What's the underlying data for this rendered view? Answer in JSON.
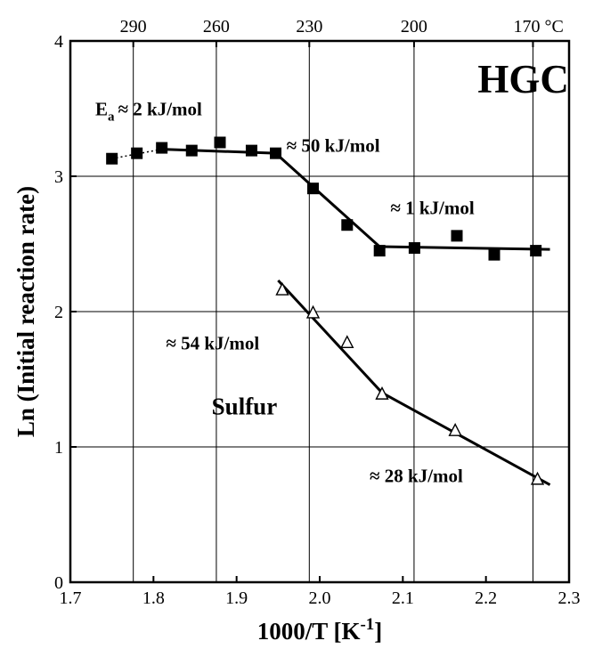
{
  "chart_data": {
    "type": "scatter",
    "title": "",
    "xlabel": "1000/T [K",
    "xlabel_sup": "-1",
    "xlabel_end": "]",
    "ylabel": "Ln (Initial reaction rate)",
    "xlim": [
      1.7,
      2.3
    ],
    "ylim": [
      0,
      4
    ],
    "x_ticks": [
      "1.7",
      "1.8",
      "1.9",
      "2.0",
      "2.1",
      "2.2",
      "2.3"
    ],
    "x_tick_values": [
      1.7,
      1.8,
      1.9,
      2.0,
      2.1,
      2.2,
      2.3
    ],
    "y_ticks": [
      "0",
      "1",
      "2",
      "3",
      "4"
    ],
    "y_tick_values": [
      0,
      1,
      2,
      3,
      4
    ],
    "top_axis": {
      "labels": [
        "290",
        "260",
        "230",
        "200",
        "170 °C"
      ],
      "celsius": [
        290,
        260,
        230,
        200,
        170
      ]
    },
    "grid": true,
    "series": [
      {
        "name": "HGC",
        "marker": "filled-square",
        "x": [
          1.75,
          1.78,
          1.81,
          1.846,
          1.88,
          1.918,
          1.947,
          1.992,
          2.033,
          2.072,
          2.114,
          2.165,
          2.21,
          2.26
        ],
        "y": [
          3.13,
          3.17,
          3.21,
          3.19,
          3.25,
          3.19,
          3.17,
          2.91,
          2.64,
          2.45,
          2.47,
          2.56,
          2.42,
          2.45
        ],
        "fits": [
          {
            "style": "dotted",
            "x": [
              1.75,
              1.81
            ],
            "y": [
              3.13,
              3.2
            ]
          },
          {
            "style": "solid",
            "x": [
              1.81,
              1.947
            ],
            "y": [
              3.2,
              3.17
            ]
          },
          {
            "style": "solid",
            "x": [
              1.947,
              2.072
            ],
            "y": [
              3.17,
              2.48
            ]
          },
          {
            "style": "solid",
            "x": [
              2.072,
              2.277
            ],
            "y": [
              2.48,
              2.46
            ]
          }
        ]
      },
      {
        "name": "Sulfur",
        "marker": "open-triangle",
        "x": [
          1.955,
          1.992,
          2.033,
          2.075,
          2.163,
          2.262
        ],
        "y": [
          2.16,
          1.99,
          1.77,
          1.39,
          1.12,
          0.76
        ],
        "fits": [
          {
            "style": "solid",
            "x": [
              1.95,
              2.075
            ],
            "y": [
              2.23,
              1.4
            ]
          },
          {
            "style": "solid",
            "x": [
              2.075,
              2.277
            ],
            "y": [
              1.4,
              0.72
            ]
          }
        ]
      }
    ],
    "annotations": [
      {
        "id": "hgc-label",
        "text": "HGC",
        "style": "big",
        "x": 2.19,
        "y": 3.62
      },
      {
        "id": "ea-low",
        "text": "E",
        "sub": "a",
        "rest": "≈ 2 kJ/mol",
        "style": "anno",
        "x": 1.73,
        "y": 3.45
      },
      {
        "id": "ea-mid",
        "text": "≈ 50 kJ/mol",
        "style": "anno",
        "x": 1.96,
        "y": 3.18
      },
      {
        "id": "ea-high",
        "text": "≈ 1 kJ/mol",
        "style": "anno",
        "x": 2.085,
        "y": 2.72
      },
      {
        "id": "ea-s1",
        "text": "≈ 54 kJ/mol",
        "style": "anno",
        "x": 1.815,
        "y": 1.72
      },
      {
        "id": "sulfur-label",
        "text": "Sulfur",
        "style": "mid",
        "x": 1.87,
        "y": 1.24
      },
      {
        "id": "ea-s2",
        "text": "≈ 28 kJ/mol",
        "style": "anno",
        "x": 2.06,
        "y": 0.74
      }
    ]
  }
}
